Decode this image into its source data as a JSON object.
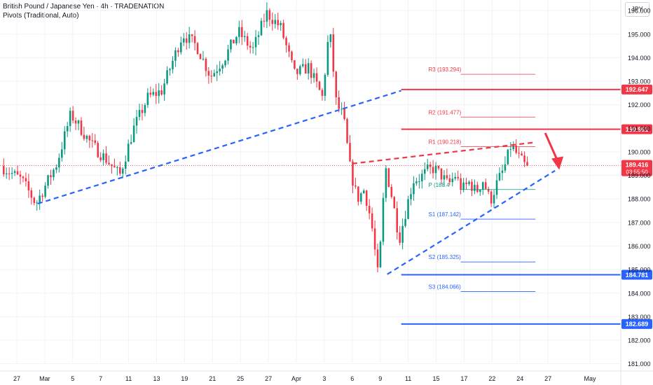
{
  "header": {
    "title": "British Pound / Japanese Yen · 4h · TRADENATION",
    "indicator": "Pivots (Traditional, Auto)"
  },
  "currency_button": "JPY",
  "colors": {
    "up": "#089981",
    "down": "#f23645",
    "blue": "#2962ff",
    "red": "#f23645",
    "dashBlue": "#2962ff",
    "dashRed": "#f23645",
    "grid": "#f0f3fa",
    "text": "#131722",
    "axisText": "#131722",
    "priceTag": "#f23645"
  },
  "chart_data": {
    "type": "candlestick",
    "title": "British Pound / Japanese Yen · 4h · TRADENATION",
    "ylim": [
      181,
      196.6
    ],
    "y_ticks": [
      181,
      182,
      183,
      184,
      185,
      186,
      187,
      188,
      189,
      190,
      191,
      192,
      193,
      194,
      195,
      196
    ],
    "x_labels": [
      {
        "label": "27",
        "t": 2
      },
      {
        "label": "Mar",
        "t": 6
      },
      {
        "label": "5",
        "t": 10
      },
      {
        "label": "7",
        "t": 14
      },
      {
        "label": "11",
        "t": 18
      },
      {
        "label": "13",
        "t": 22
      },
      {
        "label": "19",
        "t": 26
      },
      {
        "label": "21",
        "t": 30
      },
      {
        "label": "25",
        "t": 34
      },
      {
        "label": "27",
        "t": 38
      },
      {
        "label": "Apr",
        "t": 42
      },
      {
        "label": "3",
        "t": 46
      },
      {
        "label": "6",
        "t": 50
      },
      {
        "label": "9",
        "t": 54
      },
      {
        "label": "11",
        "t": 58
      },
      {
        "label": "15",
        "t": 62
      },
      {
        "label": "17",
        "t": 66
      },
      {
        "label": "22",
        "t": 70
      },
      {
        "label": "24",
        "t": 74
      },
      {
        "label": "27",
        "t": 78
      },
      {
        "label": "May",
        "t": 84
      }
    ],
    "path": [
      [
        0,
        189.4
      ],
      [
        3,
        188.8
      ],
      [
        5,
        187.8
      ],
      [
        8,
        189.5
      ],
      [
        10,
        191.6
      ],
      [
        13,
        190.3
      ],
      [
        15,
        189.7
      ],
      [
        17,
        189.0
      ],
      [
        19,
        191.0
      ],
      [
        21,
        192.3
      ],
      [
        23,
        192.6
      ],
      [
        26,
        195.0
      ],
      [
        28,
        194.5
      ],
      [
        30,
        193.2
      ],
      [
        32,
        194.0
      ],
      [
        34,
        195.1
      ],
      [
        36,
        194.3
      ],
      [
        38,
        195.9
      ],
      [
        40,
        195.3
      ],
      [
        42,
        193.3
      ],
      [
        44,
        193.6
      ],
      [
        46,
        192.3
      ],
      [
        47,
        195.3
      ],
      [
        48,
        192.0
      ],
      [
        49,
        191.5
      ],
      [
        50,
        189.2
      ],
      [
        51,
        188.0
      ],
      [
        52,
        188.4
      ],
      [
        53,
        187.0
      ],
      [
        54,
        184.6
      ],
      [
        55,
        189.4
      ],
      [
        56,
        188.0
      ],
      [
        57,
        186.3
      ],
      [
        58,
        187.6
      ],
      [
        59,
        188.8
      ],
      [
        60,
        188.9
      ],
      [
        61,
        189.2
      ],
      [
        62,
        189.3
      ],
      [
        63,
        189.0
      ],
      [
        64,
        188.6
      ],
      [
        65,
        189.0
      ],
      [
        66,
        188.4
      ],
      [
        67,
        188.7
      ],
      [
        68,
        188.3
      ],
      [
        69,
        188.8
      ],
      [
        70,
        187.9
      ],
      [
        71,
        188.7
      ],
      [
        72,
        189.3
      ],
      [
        73,
        190.3
      ],
      [
        74,
        189.8
      ],
      [
        75,
        189.4
      ]
    ],
    "candle_count": 190,
    "current_price": 189.416,
    "countdown": "03:55:50",
    "pivots": [
      {
        "name": "R3",
        "label": "R3 (193.294)",
        "value": 193.294
      },
      {
        "name": "R2",
        "label": "R2 (191.477)",
        "value": 191.477
      },
      {
        "name": "R1",
        "label": "R1 (190.218)",
        "value": 190.218
      },
      {
        "name": "P",
        "label": "P (188.4",
        "value": 188.4
      },
      {
        "name": "S1",
        "label": "S1 (187.142)",
        "value": 187.142
      },
      {
        "name": "S2",
        "label": "S2 (185.325)",
        "value": 185.325
      },
      {
        "name": "S3",
        "label": "S3 (184.066)",
        "value": 184.066
      }
    ],
    "levels": [
      {
        "value": 192.647,
        "label": "192.647",
        "color": "red",
        "t_start": 57
      },
      {
        "value": 190.961,
        "label": "190.961",
        "color": "red",
        "t_start": 57
      },
      {
        "value": 184.781,
        "label": "184.781",
        "color": "blue",
        "t_start": 57
      },
      {
        "value": 182.689,
        "label": "182.689",
        "color": "blue",
        "t_start": 57
      }
    ],
    "trendlines": [
      {
        "name": "lower-support-trendline",
        "color": "blue",
        "from": [
          5,
          187.8
        ],
        "to": [
          57,
          192.6
        ]
      },
      {
        "name": "rising-support-trendline",
        "color": "blue",
        "from": [
          55,
          184.8
        ],
        "to": [
          79,
          189.2
        ]
      },
      {
        "name": "resistance-trendline",
        "color": "red",
        "from": [
          50,
          189.5
        ],
        "to": [
          76,
          190.4
        ]
      }
    ],
    "arrow": {
      "from": [
        77,
        190.8
      ],
      "to": [
        79,
        189.3
      ],
      "color": "red"
    }
  }
}
